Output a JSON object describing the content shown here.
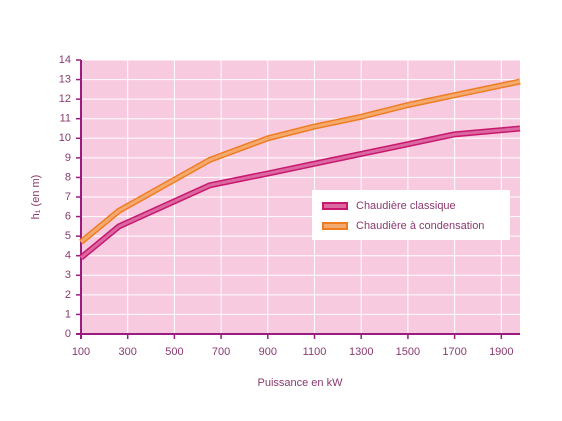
{
  "chart_data": {
    "type": "line",
    "xlabel": "Puissance en kW",
    "ylabel": "h₁ (en m)",
    "x": [
      100,
      263,
      652,
      900,
      1100,
      1300,
      1500,
      1700,
      1980
    ],
    "series": [
      {
        "name": "Chaudière classique",
        "color": "#c8176f",
        "values": [
          3.9,
          5.5,
          7.6,
          8.2,
          8.7,
          9.2,
          9.7,
          10.2,
          10.5
        ]
      },
      {
        "name": "Chaudière à condensation",
        "color": "#ee7d22",
        "values": [
          4.7,
          6.3,
          8.9,
          10.0,
          10.6,
          11.1,
          11.7,
          12.2,
          12.9
        ]
      }
    ],
    "xlim": [
      100,
      1980
    ],
    "ylim": [
      0,
      14
    ],
    "xticks": [
      100,
      300,
      500,
      700,
      900,
      1100,
      1300,
      1500,
      1700,
      1900
    ],
    "yticks": [
      0,
      1,
      2,
      3,
      4,
      5,
      6,
      7,
      8,
      9,
      10,
      11,
      12,
      13,
      14
    ],
    "grid": true
  }
}
